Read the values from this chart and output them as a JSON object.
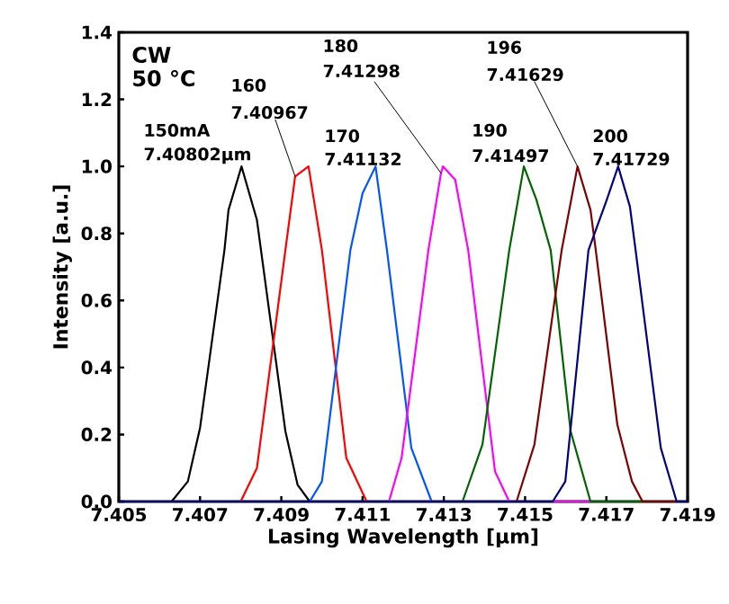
{
  "chart_data": {
    "type": "line",
    "xlabel": "Lasing Wavelength [μm]",
    "ylabel": "Intensity [a.u.]",
    "xlim": [
      7.405,
      7.419
    ],
    "xticks": [
      7.405,
      7.407,
      7.409,
      7.411,
      7.413,
      7.415,
      7.417,
      7.419
    ],
    "ylim": [
      0,
      1.4
    ],
    "yticks": [
      {
        "value": 0,
        "label": "0.0"
      },
      0.2,
      0.4,
      0.6,
      0.8,
      {
        "value": 1,
        "label": "1.0"
      },
      1.2,
      1.4
    ],
    "grid": false,
    "marker": "none",
    "line_style": "solid",
    "x": [
      7.405,
      7.4063,
      7.4067,
      7.407,
      7.4076,
      7.4077,
      7.40802,
      7.4084,
      7.4085,
      7.4091,
      7.4094,
      7.4097,
      7.419
    ],
    "series": [
      {
        "color": "#000000",
        "values": [
          0,
          0,
          0.06,
          0.22,
          0.75,
          0.87,
          1.0,
          0.84,
          0.75,
          0.21,
          0.05,
          0,
          0
        ]
      },
      {
        "color": "#ff0000",
        "x": [
          7.405,
          7.408,
          7.4084,
          7.4091,
          7.40934,
          7.40967,
          7.41,
          7.4106,
          7.4111,
          7.419
        ],
        "values": [
          0,
          0,
          0.1,
          0.75,
          0.97,
          1.0,
          0.75,
          0.13,
          0,
          0
        ]
      },
      {
        "color": "#0055ff",
        "x": [
          7.405,
          7.4097,
          7.41,
          7.4107,
          7.411,
          7.41132,
          7.4116,
          7.4122,
          7.4127,
          7.419
        ],
        "values": [
          0,
          0,
          0.06,
          0.75,
          0.92,
          1.0,
          0.75,
          0.16,
          0,
          0
        ]
      },
      {
        "color": "#ff00ff",
        "x": [
          7.405,
          7.41165,
          7.41196,
          7.41262,
          7.41293,
          7.41298,
          7.41328,
          7.4136,
          7.41426,
          7.41461,
          7.419
        ],
        "values": [
          0,
          0,
          0.13,
          0.75,
          0.98,
          1.0,
          0.96,
          0.75,
          0.09,
          0,
          0
        ]
      },
      {
        "color": "#006400",
        "x": [
          7.405,
          7.41346,
          7.41395,
          7.41461,
          7.41497,
          7.41528,
          7.41563,
          7.41612,
          7.41661,
          7.419
        ],
        "values": [
          0,
          0,
          0.17,
          0.75,
          1.0,
          0.9,
          0.75,
          0.21,
          0,
          0
        ]
      },
      {
        "color": "#800000",
        "x": [
          7.405,
          7.41479,
          7.41523,
          7.4159,
          7.41629,
          7.41661,
          7.41674,
          7.41727,
          7.41763,
          7.41789,
          7.419
        ],
        "values": [
          0,
          0,
          0.17,
          0.75,
          1.0,
          0.87,
          0.75,
          0.23,
          0.06,
          0,
          0
        ]
      },
      {
        "color": "#000080",
        "x": [
          7.405,
          7.41568,
          7.41599,
          7.41656,
          7.41701,
          7.41729,
          7.41758,
          7.41772,
          7.41834,
          7.41873,
          7.419
        ],
        "values": [
          0,
          0,
          0.06,
          0.75,
          0.9,
          1.0,
          0.88,
          0.75,
          0.16,
          0,
          0
        ]
      }
    ],
    "annotations": [
      "CW",
      "50 °C",
      "150mA",
      "7.40802μm",
      "160",
      {
        "text": "7.40967",
        "x": 7.40934,
        "y": 0.97
      },
      "170",
      "7.41132",
      "180",
      {
        "text": "7.41298",
        "x": 7.41293,
        "y": 0.98
      },
      "190",
      "7.41497",
      "196",
      {
        "text": "7.41629",
        "x": 7.41629,
        "y": 1.0
      },
      "200",
      "7.41729"
    ]
  }
}
